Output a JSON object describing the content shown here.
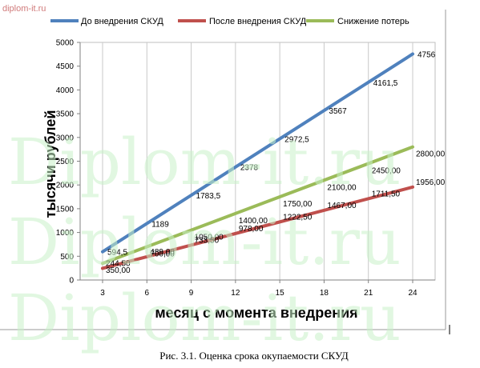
{
  "site_mark": "diplom-it.ru",
  "watermark_text": "Diplom-it.ru",
  "caption": "Рис. 3.1. Оценка срока окупаемости СКУД",
  "chart_data": {
    "type": "line",
    "xlabel": "месяц с момента внедрения",
    "ylabel": "тысячи рублей",
    "categories": [
      3,
      6,
      9,
      12,
      15,
      18,
      21,
      24
    ],
    "ylim": [
      0,
      5000
    ],
    "yticks": [
      0,
      500,
      1000,
      1500,
      2000,
      2500,
      3000,
      3500,
      4000,
      4500,
      5000
    ],
    "grid": "vertical",
    "legend_position": "top",
    "series": [
      {
        "name": "До внедрения СКУД",
        "color": "#4f81bd",
        "x": [
          3,
          24
        ],
        "y": [
          594.5,
          4756
        ],
        "labels": [
          {
            "x": 3,
            "y": 594.5,
            "text": "594,5"
          },
          {
            "x": 6,
            "y": 1189,
            "text": "1189"
          },
          {
            "x": 9,
            "y": 1783.5,
            "text": "1783,5"
          },
          {
            "x": 12,
            "y": 2378,
            "text": "2378"
          },
          {
            "x": 15,
            "y": 2972.5,
            "text": "2972,5"
          },
          {
            "x": 18,
            "y": 3567,
            "text": "3567"
          },
          {
            "x": 21,
            "y": 4161.5,
            "text": "4161,5"
          },
          {
            "x": 24,
            "y": 4756,
            "text": "4756"
          }
        ]
      },
      {
        "name": "После внедрения СКУД",
        "color": "#c0504d",
        "x": [
          3,
          24
        ],
        "y": [
          244.5,
          1956
        ],
        "labels": [
          {
            "x": 3,
            "y": 244.5,
            "text": "244,50"
          },
          {
            "x": 6,
            "y": 489,
            "text": "489,00"
          },
          {
            "x": 9,
            "y": 733.5,
            "text": "733,50"
          },
          {
            "x": 12,
            "y": 978,
            "text": "978,00"
          },
          {
            "x": 15,
            "y": 1222.5,
            "text": "1222,50"
          },
          {
            "x": 18,
            "y": 1467,
            "text": "1467,00"
          },
          {
            "x": 21,
            "y": 1711.5,
            "text": "1711,50"
          },
          {
            "x": 24,
            "y": 1956,
            "text": "1956,00"
          }
        ]
      },
      {
        "name": "Снижение потерь",
        "color": "#9bbb59",
        "x": [
          3,
          24
        ],
        "y": [
          350,
          2800
        ],
        "labels": [
          {
            "x": 3,
            "y": 350,
            "text": "350,00"
          },
          {
            "x": 6,
            "y": 700,
            "text": "700,00"
          },
          {
            "x": 9,
            "y": 1050,
            "text": "1050,00"
          },
          {
            "x": 12,
            "y": 1400,
            "text": "1400,00"
          },
          {
            "x": 15,
            "y": 1750,
            "text": "1750,00"
          },
          {
            "x": 18,
            "y": 2100,
            "text": "2100,00"
          },
          {
            "x": 21,
            "y": 2450,
            "text": "2450,00"
          },
          {
            "x": 24,
            "y": 2800,
            "text": "2800,00"
          }
        ]
      }
    ]
  }
}
